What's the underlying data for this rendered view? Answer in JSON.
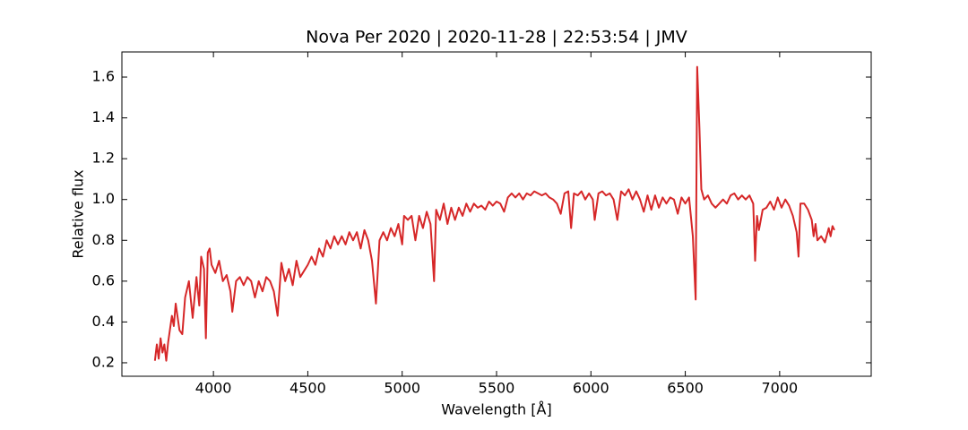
{
  "chart_data": {
    "type": "line",
    "title": "Nova Per 2020 | 2020-11-28 | 22:53:54 | JMV",
    "xlabel": "Wavelength [Å]",
    "ylabel": "Relative flux",
    "xlim": [
      3515,
      7485
    ],
    "ylim": [
      0.134,
      1.723
    ],
    "xticks": [
      4000,
      4500,
      5000,
      5500,
      6000,
      6500,
      7000
    ],
    "yticks": [
      0.2,
      0.4,
      0.6,
      0.8,
      {
        "value": 1,
        "label": "1.0"
      },
      1.2,
      1.4,
      1.6
    ],
    "grid": false,
    "x": [
      3690,
      3700,
      3710,
      3720,
      3730,
      3740,
      3750,
      3760,
      3780,
      3790,
      3800,
      3820,
      3835,
      3850,
      3870,
      3890,
      3910,
      3925,
      3935,
      3950,
      3960,
      3970,
      3980,
      3990,
      4010,
      4030,
      4050,
      4070,
      4090,
      4100,
      4120,
      4140,
      4160,
      4180,
      4200,
      4220,
      4240,
      4260,
      4280,
      4300,
      4320,
      4340,
      4360,
      4380,
      4400,
      4420,
      4440,
      4460,
      4480,
      4500,
      4520,
      4540,
      4560,
      4580,
      4600,
      4620,
      4640,
      4660,
      4680,
      4700,
      4720,
      4740,
      4760,
      4780,
      4800,
      4820,
      4840,
      4861,
      4880,
      4900,
      4920,
      4940,
      4960,
      4980,
      5000,
      5010,
      5030,
      5050,
      5070,
      5090,
      5110,
      5130,
      5150,
      5169,
      5180,
      5200,
      5220,
      5240,
      5260,
      5280,
      5300,
      5320,
      5340,
      5360,
      5380,
      5400,
      5420,
      5440,
      5460,
      5480,
      5500,
      5520,
      5540,
      5560,
      5580,
      5600,
      5620,
      5640,
      5660,
      5680,
      5700,
      5720,
      5740,
      5760,
      5780,
      5800,
      5820,
      5840,
      5860,
      5880,
      5895,
      5910,
      5930,
      5950,
      5970,
      5990,
      6010,
      6020,
      6040,
      6060,
      6080,
      6100,
      6120,
      6140,
      6160,
      6180,
      6200,
      6220,
      6240,
      6260,
      6280,
      6300,
      6320,
      6340,
      6360,
      6380,
      6400,
      6420,
      6440,
      6460,
      6480,
      6500,
      6520,
      6540,
      6555,
      6563,
      6575,
      6585,
      6600,
      6620,
      6640,
      6660,
      6680,
      6700,
      6720,
      6740,
      6760,
      6780,
      6800,
      6820,
      6840,
      6860,
      6870,
      6880,
      6890,
      6910,
      6930,
      6950,
      6970,
      6990,
      7010,
      7030,
      7050,
      7070,
      7090,
      7100,
      7110,
      7130,
      7150,
      7170,
      7180,
      7190,
      7200,
      7220,
      7240,
      7260,
      7270,
      7280,
      7290
    ],
    "series": [
      {
        "color": "#d62728",
        "values": [
          0.21,
          0.29,
          0.22,
          0.32,
          0.25,
          0.29,
          0.21,
          0.3,
          0.43,
          0.38,
          0.49,
          0.36,
          0.34,
          0.52,
          0.6,
          0.42,
          0.62,
          0.48,
          0.72,
          0.66,
          0.32,
          0.74,
          0.76,
          0.68,
          0.64,
          0.7,
          0.6,
          0.63,
          0.55,
          0.45,
          0.6,
          0.62,
          0.58,
          0.62,
          0.6,
          0.52,
          0.6,
          0.55,
          0.62,
          0.6,
          0.55,
          0.43,
          0.69,
          0.6,
          0.66,
          0.58,
          0.7,
          0.62,
          0.65,
          0.68,
          0.72,
          0.68,
          0.76,
          0.72,
          0.8,
          0.76,
          0.82,
          0.78,
          0.82,
          0.78,
          0.84,
          0.8,
          0.84,
          0.76,
          0.85,
          0.8,
          0.7,
          0.49,
          0.8,
          0.84,
          0.8,
          0.86,
          0.82,
          0.88,
          0.78,
          0.92,
          0.9,
          0.92,
          0.8,
          0.92,
          0.86,
          0.94,
          0.88,
          0.6,
          0.95,
          0.9,
          0.98,
          0.88,
          0.96,
          0.9,
          0.96,
          0.92,
          0.98,
          0.94,
          0.98,
          0.96,
          0.97,
          0.95,
          0.99,
          0.97,
          0.99,
          0.98,
          0.94,
          1.01,
          1.03,
          1.01,
          1.03,
          1.0,
          1.03,
          1.02,
          1.04,
          1.03,
          1.02,
          1.03,
          1.01,
          1.0,
          0.98,
          0.93,
          1.03,
          1.04,
          0.86,
          1.03,
          1.02,
          1.04,
          1.0,
          1.03,
          1.0,
          0.9,
          1.03,
          1.04,
          1.02,
          1.03,
          1.0,
          0.9,
          1.04,
          1.02,
          1.05,
          1.0,
          1.04,
          1.0,
          0.94,
          1.02,
          0.95,
          1.02,
          0.96,
          1.01,
          0.98,
          1.01,
          1.0,
          0.93,
          1.01,
          0.98,
          1.01,
          0.82,
          0.51,
          1.65,
          1.35,
          1.05,
          1.0,
          1.02,
          0.98,
          0.96,
          0.98,
          1.0,
          0.98,
          1.02,
          1.03,
          1.0,
          1.02,
          1.0,
          1.02,
          0.98,
          0.7,
          0.92,
          0.85,
          0.95,
          0.96,
          0.99,
          0.95,
          1.01,
          0.96,
          1.0,
          0.97,
          0.92,
          0.84,
          0.72,
          0.98,
          0.98,
          0.95,
          0.9,
          0.82,
          0.88,
          0.8,
          0.82,
          0.79,
          0.86,
          0.82,
          0.87,
          0.85
        ]
      }
    ]
  }
}
